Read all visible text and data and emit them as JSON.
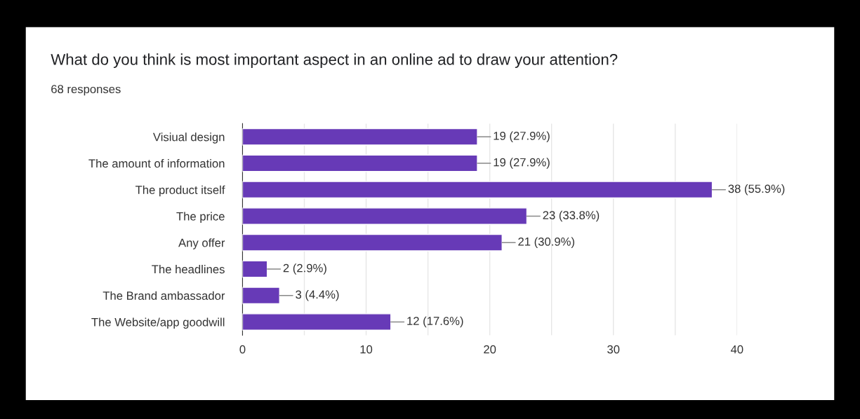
{
  "chart_data": {
    "type": "bar",
    "orientation": "horizontal",
    "title": "What do you think is most important aspect in an online ad to draw your attention?",
    "subtitle": "68 responses",
    "categories": [
      "Visiual design",
      "The amount of information",
      "The product itself",
      "The price",
      "Any offer",
      "The headlines",
      "The Brand ambassador",
      "The Website/app goodwill"
    ],
    "values": [
      19,
      19,
      38,
      23,
      21,
      2,
      3,
      12
    ],
    "value_labels": [
      "19 (27.9%)",
      "19 (27.9%)",
      "38 (55.9%)",
      "23 (33.8%)",
      "21 (30.9%)",
      "2 (2.9%)",
      "3 (4.4%)",
      "12 (17.6%)"
    ],
    "color": "#673ab7",
    "xlim": [
      0,
      40
    ],
    "xticks": [
      0,
      {
        "value": 5,
        "label": null
      },
      10,
      {
        "value": 15,
        "label": null
      },
      20,
      {
        "value": 25,
        "label": null
      },
      30,
      {
        "value": 35,
        "label": null
      },
      40
    ],
    "grid": "x",
    "legend": false
  }
}
